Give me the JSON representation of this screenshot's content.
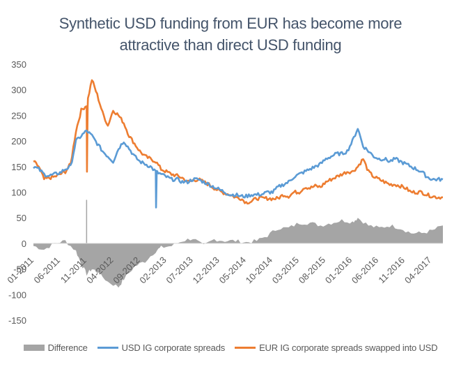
{
  "chart_data": {
    "type": "line",
    "title_line1": "Synthetic USD funding from EUR has become more",
    "title_line2": "attractive than direct USD funding",
    "xlabel": "",
    "ylabel": "",
    "ylim": [
      -150,
      350
    ],
    "y_ticks": [
      350,
      300,
      250,
      200,
      150,
      100,
      50,
      0,
      -50,
      -100,
      -150
    ],
    "x_range": [
      "2011-01",
      "2017-06"
    ],
    "x_tick_labels": [
      "01-2011",
      "06-2011",
      "11-2011",
      "04-2012",
      "09-2012",
      "02-2013",
      "07-2013",
      "12-2013",
      "05-2014",
      "10-2014",
      "03-2015",
      "08-2015",
      "01-2016",
      "06-2016",
      "11-2016",
      "04-2017"
    ],
    "grid": false,
    "legend_position": "bottom",
    "colors": {
      "difference": "#a5a5a5",
      "usd": "#5b9bd5",
      "eur": "#ed7d31"
    },
    "series": [
      {
        "name": "Difference",
        "style": "area",
        "x": [
          "2011-01",
          "2011-03",
          "2011-05",
          "2011-07",
          "2011-09",
          "2011-10",
          "2011-11",
          "2011-12",
          "2012-01",
          "2012-03",
          "2012-05",
          "2012-06",
          "2012-08",
          "2012-10",
          "2012-12",
          "2013-01",
          "2013-03",
          "2013-05",
          "2013-07",
          "2013-09",
          "2013-11",
          "2014-01",
          "2014-03",
          "2014-05",
          "2014-07",
          "2014-09",
          "2014-11",
          "2015-01",
          "2015-03",
          "2015-05",
          "2015-07",
          "2015-09",
          "2015-11",
          "2016-01",
          "2016-02",
          "2016-04",
          "2016-06",
          "2016-08",
          "2016-10",
          "2016-12",
          "2017-02",
          "2017-04",
          "2017-06"
        ],
        "values": [
          -5,
          -12,
          0,
          5,
          -15,
          -40,
          -60,
          -50,
          -55,
          -75,
          -85,
          -70,
          -45,
          -35,
          -15,
          -8,
          -5,
          5,
          10,
          -5,
          8,
          5,
          5,
          2,
          5,
          15,
          30,
          30,
          40,
          40,
          35,
          40,
          45,
          42,
          50,
          35,
          30,
          35,
          30,
          20,
          20,
          25,
          35
        ]
      },
      {
        "name": "USD IG corporate spreads",
        "style": "line",
        "x": [
          "2011-01",
          "2011-02",
          "2011-03",
          "2011-04",
          "2011-05",
          "2011-06",
          "2011-07",
          "2011-08",
          "2011-09",
          "2011-10",
          "2011-11",
          "2011-12",
          "2012-01",
          "2012-02",
          "2012-03",
          "2012-04",
          "2012-05",
          "2012-06",
          "2012-07",
          "2012-08",
          "2012-09",
          "2012-10",
          "2012-11",
          "2012-12",
          "2013-01",
          "2013-02",
          "2013-03",
          "2013-04",
          "2013-05",
          "2013-06",
          "2013-07",
          "2013-08",
          "2013-09",
          "2013-10",
          "2013-11",
          "2013-12",
          "2014-01",
          "2014-02",
          "2014-03",
          "2014-04",
          "2014-05",
          "2014-06",
          "2014-07",
          "2014-08",
          "2014-09",
          "2014-10",
          "2014-11",
          "2014-12",
          "2015-01",
          "2015-02",
          "2015-03",
          "2015-04",
          "2015-05",
          "2015-06",
          "2015-07",
          "2015-08",
          "2015-09",
          "2015-10",
          "2015-11",
          "2015-12",
          "2016-01",
          "2016-02",
          "2016-03",
          "2016-04",
          "2016-05",
          "2016-06",
          "2016-07",
          "2016-08",
          "2016-09",
          "2016-10",
          "2016-11",
          "2016-12",
          "2017-01",
          "2017-02",
          "2017-03",
          "2017-04",
          "2017-05",
          "2017-06"
        ],
        "values": [
          150,
          145,
          135,
          132,
          135,
          138,
          145,
          150,
          200,
          210,
          220,
          210,
          195,
          180,
          170,
          160,
          185,
          200,
          185,
          170,
          160,
          155,
          150,
          140,
          135,
          130,
          125,
          125,
          120,
          120,
          125,
          125,
          120,
          115,
          110,
          105,
          100,
          95,
          95,
          92,
          92,
          95,
          95,
          96,
          100,
          100,
          110,
          115,
          120,
          130,
          135,
          140,
          145,
          150,
          155,
          165,
          170,
          175,
          175,
          180,
          200,
          225,
          190,
          180,
          170,
          165,
          165,
          160,
          165,
          160,
          155,
          150,
          145,
          140,
          130,
          125,
          125,
          125
        ]
      },
      {
        "name": "EUR IG corporate spreads swapped into USD",
        "style": "line",
        "x": [
          "2011-01",
          "2011-02",
          "2011-03",
          "2011-04",
          "2011-05",
          "2011-06",
          "2011-07",
          "2011-08",
          "2011-09",
          "2011-10",
          "2011-11",
          "2011-12",
          "2012-01",
          "2012-02",
          "2012-03",
          "2012-04",
          "2012-05",
          "2012-06",
          "2012-07",
          "2012-08",
          "2012-09",
          "2012-10",
          "2012-11",
          "2012-12",
          "2013-01",
          "2013-02",
          "2013-03",
          "2013-04",
          "2013-05",
          "2013-06",
          "2013-07",
          "2013-08",
          "2013-09",
          "2013-10",
          "2013-11",
          "2013-12",
          "2014-01",
          "2014-02",
          "2014-03",
          "2014-04",
          "2014-05",
          "2014-06",
          "2014-07",
          "2014-08",
          "2014-09",
          "2014-10",
          "2014-11",
          "2014-12",
          "2015-01",
          "2015-02",
          "2015-03",
          "2015-04",
          "2015-05",
          "2015-06",
          "2015-07",
          "2015-08",
          "2015-09",
          "2015-10",
          "2015-11",
          "2015-12",
          "2016-01",
          "2016-02",
          "2016-03",
          "2016-04",
          "2016-05",
          "2016-06",
          "2016-07",
          "2016-08",
          "2016-09",
          "2016-10",
          "2016-11",
          "2016-12",
          "2017-01",
          "2017-02",
          "2017-03",
          "2017-04",
          "2017-05",
          "2017-06"
        ],
        "values": [
          160,
          150,
          125,
          128,
          130,
          135,
          140,
          155,
          220,
          260,
          270,
          320,
          290,
          255,
          230,
          260,
          250,
          235,
          210,
          195,
          180,
          170,
          165,
          160,
          145,
          140,
          135,
          132,
          128,
          120,
          123,
          125,
          120,
          115,
          108,
          102,
          98,
          95,
          90,
          88,
          80,
          82,
          88,
          88,
          88,
          87,
          88,
          95,
          92,
          100,
          100,
          110,
          108,
          112,
          110,
          120,
          125,
          130,
          135,
          140,
          140,
          150,
          165,
          140,
          130,
          125,
          120,
          115,
          115,
          112,
          108,
          100,
          100,
          100,
          95,
          92,
          90,
          90
        ]
      }
    ],
    "spikes": {
      "difference": {
        "x": "2011-11",
        "value": 85
      },
      "usd": {
        "x": "2012-12",
        "value": 70
      },
      "eur": {
        "x": "2011-11",
        "value": 140
      }
    }
  }
}
